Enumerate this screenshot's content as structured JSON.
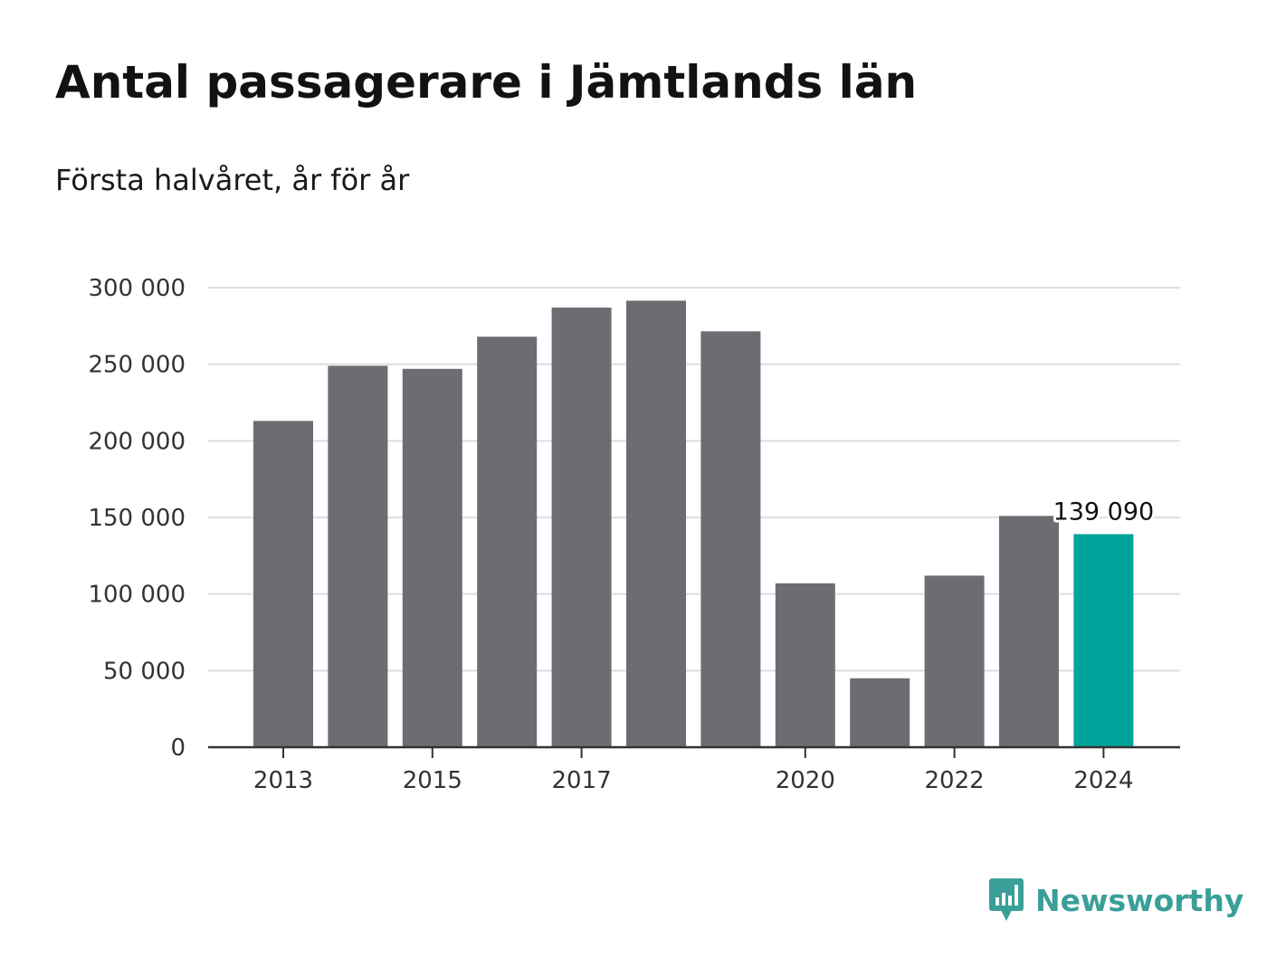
{
  "title": "Antal passagerare i Jämtlands län",
  "subtitle": "Första halvåret, år för år",
  "brand": {
    "name": "Newsworthy",
    "color": "#3a9f98",
    "icon": "bar-chart-speech-bubble-icon"
  },
  "chart_data": {
    "type": "bar",
    "categories": [
      "2013",
      "2014",
      "2015",
      "2016",
      "2017",
      "2018",
      "2019",
      "2020",
      "2021",
      "2022",
      "2023",
      "2024"
    ],
    "values": [
      213000,
      249000,
      247000,
      268000,
      287000,
      291500,
      271500,
      107000,
      45000,
      112000,
      151000,
      139090
    ],
    "x_tick_labels": [
      "2013",
      "2015",
      "2017",
      "2020",
      "2022",
      "2024"
    ],
    "y_tick_labels": [
      "0",
      "50 000",
      "100 000",
      "150 000",
      "200 000",
      "250 000",
      "300 000"
    ],
    "y_ticks": [
      0,
      50000,
      100000,
      150000,
      200000,
      250000,
      300000
    ],
    "ylim": [
      0,
      300000
    ],
    "grid": true,
    "bar_color": "#6d6c72",
    "highlight_color": "#00a39a",
    "highlight_index": 11,
    "annotations": [
      {
        "category": "2024",
        "text": "139 090"
      }
    ]
  }
}
